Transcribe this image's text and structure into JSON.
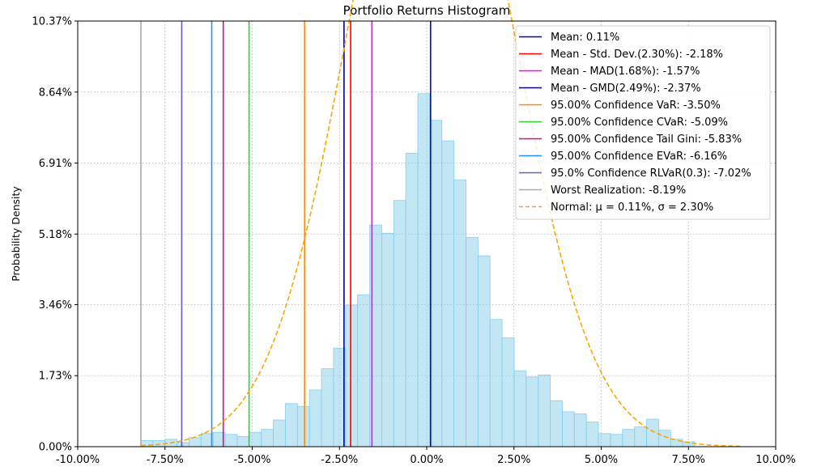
{
  "chart_data": {
    "type": "bar",
    "title": "Portfolio Returns Histogram",
    "xlabel": "",
    "ylabel": "Probability Density",
    "xlim": [
      -10.0,
      10.0
    ],
    "ylim": [
      0.0,
      10.37
    ],
    "grid": true,
    "legend_position": "top-right",
    "x_ticks": [
      -10.0,
      -7.5,
      -5.0,
      -2.5,
      0.0,
      2.5,
      5.0,
      7.5,
      10.0
    ],
    "x_tick_labels": [
      "-10.00%",
      "-7.50%",
      "-5.00%",
      "-2.50%",
      "0.00%",
      "2.50%",
      "5.00%",
      "7.50%",
      "10.00%"
    ],
    "y_ticks": [
      0.0,
      1.73,
      3.46,
      5.18,
      6.91,
      8.64,
      10.37
    ],
    "y_tick_labels": [
      "0.00%",
      "1.73%",
      "3.46%",
      "5.18%",
      "6.91%",
      "8.64%",
      "10.37%"
    ],
    "histogram": {
      "color": "#87ceeb",
      "edge_color": "#87ceeb",
      "bin_width": 0.345,
      "bin_starts": [
        -8.19,
        -7.845,
        -7.5,
        -7.155,
        -6.81,
        -6.465,
        -6.12,
        -5.775,
        -5.43,
        -5.085,
        -4.74,
        -4.395,
        -4.05,
        -3.705,
        -3.36,
        -3.015,
        -2.67,
        -2.325,
        -1.98,
        -1.635,
        -1.29,
        -0.945,
        -0.6,
        -0.255,
        0.09,
        0.435,
        0.78,
        1.125,
        1.47,
        1.815,
        2.16,
        2.505,
        2.85,
        3.195,
        3.54,
        3.885,
        4.23,
        4.575,
        4.92,
        5.265,
        5.61,
        5.955,
        6.3,
        6.645,
        6.99,
        7.335,
        7.68
      ],
      "densities": [
        0.15,
        0.15,
        0.18,
        0.1,
        0.22,
        0.32,
        0.35,
        0.3,
        0.25,
        0.35,
        0.42,
        0.65,
        1.05,
        0.98,
        1.38,
        1.9,
        2.4,
        3.45,
        3.7,
        5.4,
        5.2,
        6.0,
        7.15,
        8.6,
        7.95,
        7.45,
        6.5,
        5.1,
        4.65,
        3.1,
        2.65,
        1.85,
        1.7,
        1.75,
        1.12,
        0.85,
        0.8,
        0.6,
        0.32,
        0.3,
        0.42,
        0.48,
        0.67,
        0.4,
        0.18,
        0.12,
        0.0
      ]
    },
    "vertical_lines": [
      {
        "name": "Mean: 0.11%",
        "x": 0.11,
        "color": "#0000cd"
      },
      {
        "name": "Mean - Std. Dev.(2.30%): -2.18%",
        "x": -2.18,
        "color": "#ff0000"
      },
      {
        "name": "Mean - MAD(1.68%): -1.57%",
        "x": -1.57,
        "color": "#ff00ff"
      },
      {
        "name": "Mean - GMD(2.49%): -2.37%",
        "x": -2.37,
        "color": "#00008b"
      },
      {
        "name": "95.00% Confidence VaR: -3.50%",
        "x": -3.5,
        "color": "#ff8c00"
      },
      {
        "name": "95.00% Confidence CVaR: -5.09%",
        "x": -5.09,
        "color": "#32cd32"
      },
      {
        "name": "95.00% Confidence Tail Gini: -5.83%",
        "x": -5.83,
        "color": "#c71585"
      },
      {
        "name": "95.00% Confidence EVaR: -6.16%",
        "x": -6.16,
        "color": "#1e90ff"
      },
      {
        "name": "95.0% Confidence RLVaR(0.3): -7.02%",
        "x": -7.02,
        "color": "#6a5acd"
      },
      {
        "name": "Worst Realization: -8.19%",
        "x": -8.19,
        "color": "#a9a9a9"
      }
    ],
    "normal_curve": {
      "name": "Normal: μ = 0.11%, σ = 2.30%",
      "mu": 0.11,
      "sigma": 2.3,
      "x_range": [
        -8.19,
        9.0
      ],
      "color": "#ffa500",
      "style": "dashed"
    }
  }
}
